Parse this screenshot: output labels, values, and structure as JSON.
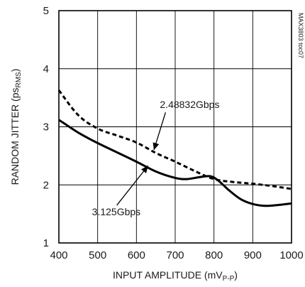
{
  "chart_data": {
    "type": "line",
    "title": "",
    "figure_code": "MAX3803 toc07",
    "xlabel": "INPUT AMPLITUDE (mVP-P)",
    "xlabel_main": "INPUT AMPLITUDE (mV",
    "xlabel_sub": "P-P",
    "xlabel_close": ")",
    "ylabel": "RANDOM JITTER (psRMS)",
    "ylabel_main": "RANDOM JITTER (ps",
    "ylabel_sub": "RMS",
    "ylabel_close": ")",
    "xlim": [
      400,
      1000
    ],
    "ylim": [
      1,
      5
    ],
    "x_ticks": [
      "400",
      "500",
      "600",
      "700",
      "800",
      "900",
      "1000"
    ],
    "y_ticks": [
      "1",
      "2",
      "3",
      "4",
      "5"
    ],
    "grid": true,
    "series": [
      {
        "name": "2.48832Gbps",
        "style": "dashed",
        "x": [
          400,
          450,
          500,
          550,
          600,
          650,
          700,
          750,
          800,
          850,
          900,
          950,
          1000
        ],
        "y": [
          3.63,
          3.2,
          2.97,
          2.85,
          2.73,
          2.55,
          2.4,
          2.24,
          2.1,
          2.05,
          2.02,
          1.98,
          1.93
        ]
      },
      {
        "name": "3.125Gbps",
        "style": "solid",
        "x": [
          400,
          450,
          500,
          550,
          600,
          650,
          700,
          730,
          760,
          790,
          810,
          840,
          870,
          900,
          930,
          960,
          1000
        ],
        "y": [
          3.12,
          2.9,
          2.72,
          2.56,
          2.4,
          2.23,
          2.12,
          2.1,
          2.13,
          2.15,
          2.08,
          1.9,
          1.75,
          1.67,
          1.64,
          1.65,
          1.68
        ]
      }
    ],
    "annotations": [
      {
        "text": "2.48832Gbps",
        "series": 0,
        "arrow_to": [
          645,
          2.6
        ],
        "label_at": [
          730,
          3.2
        ]
      },
      {
        "text": "3.125Gbps",
        "series": 1,
        "arrow_to": [
          630,
          2.33
        ],
        "label_at": [
          650,
          1.6
        ]
      }
    ],
    "colors": {
      "line": "#000000",
      "grid": "#000000",
      "text": "#1a1a1a"
    }
  }
}
